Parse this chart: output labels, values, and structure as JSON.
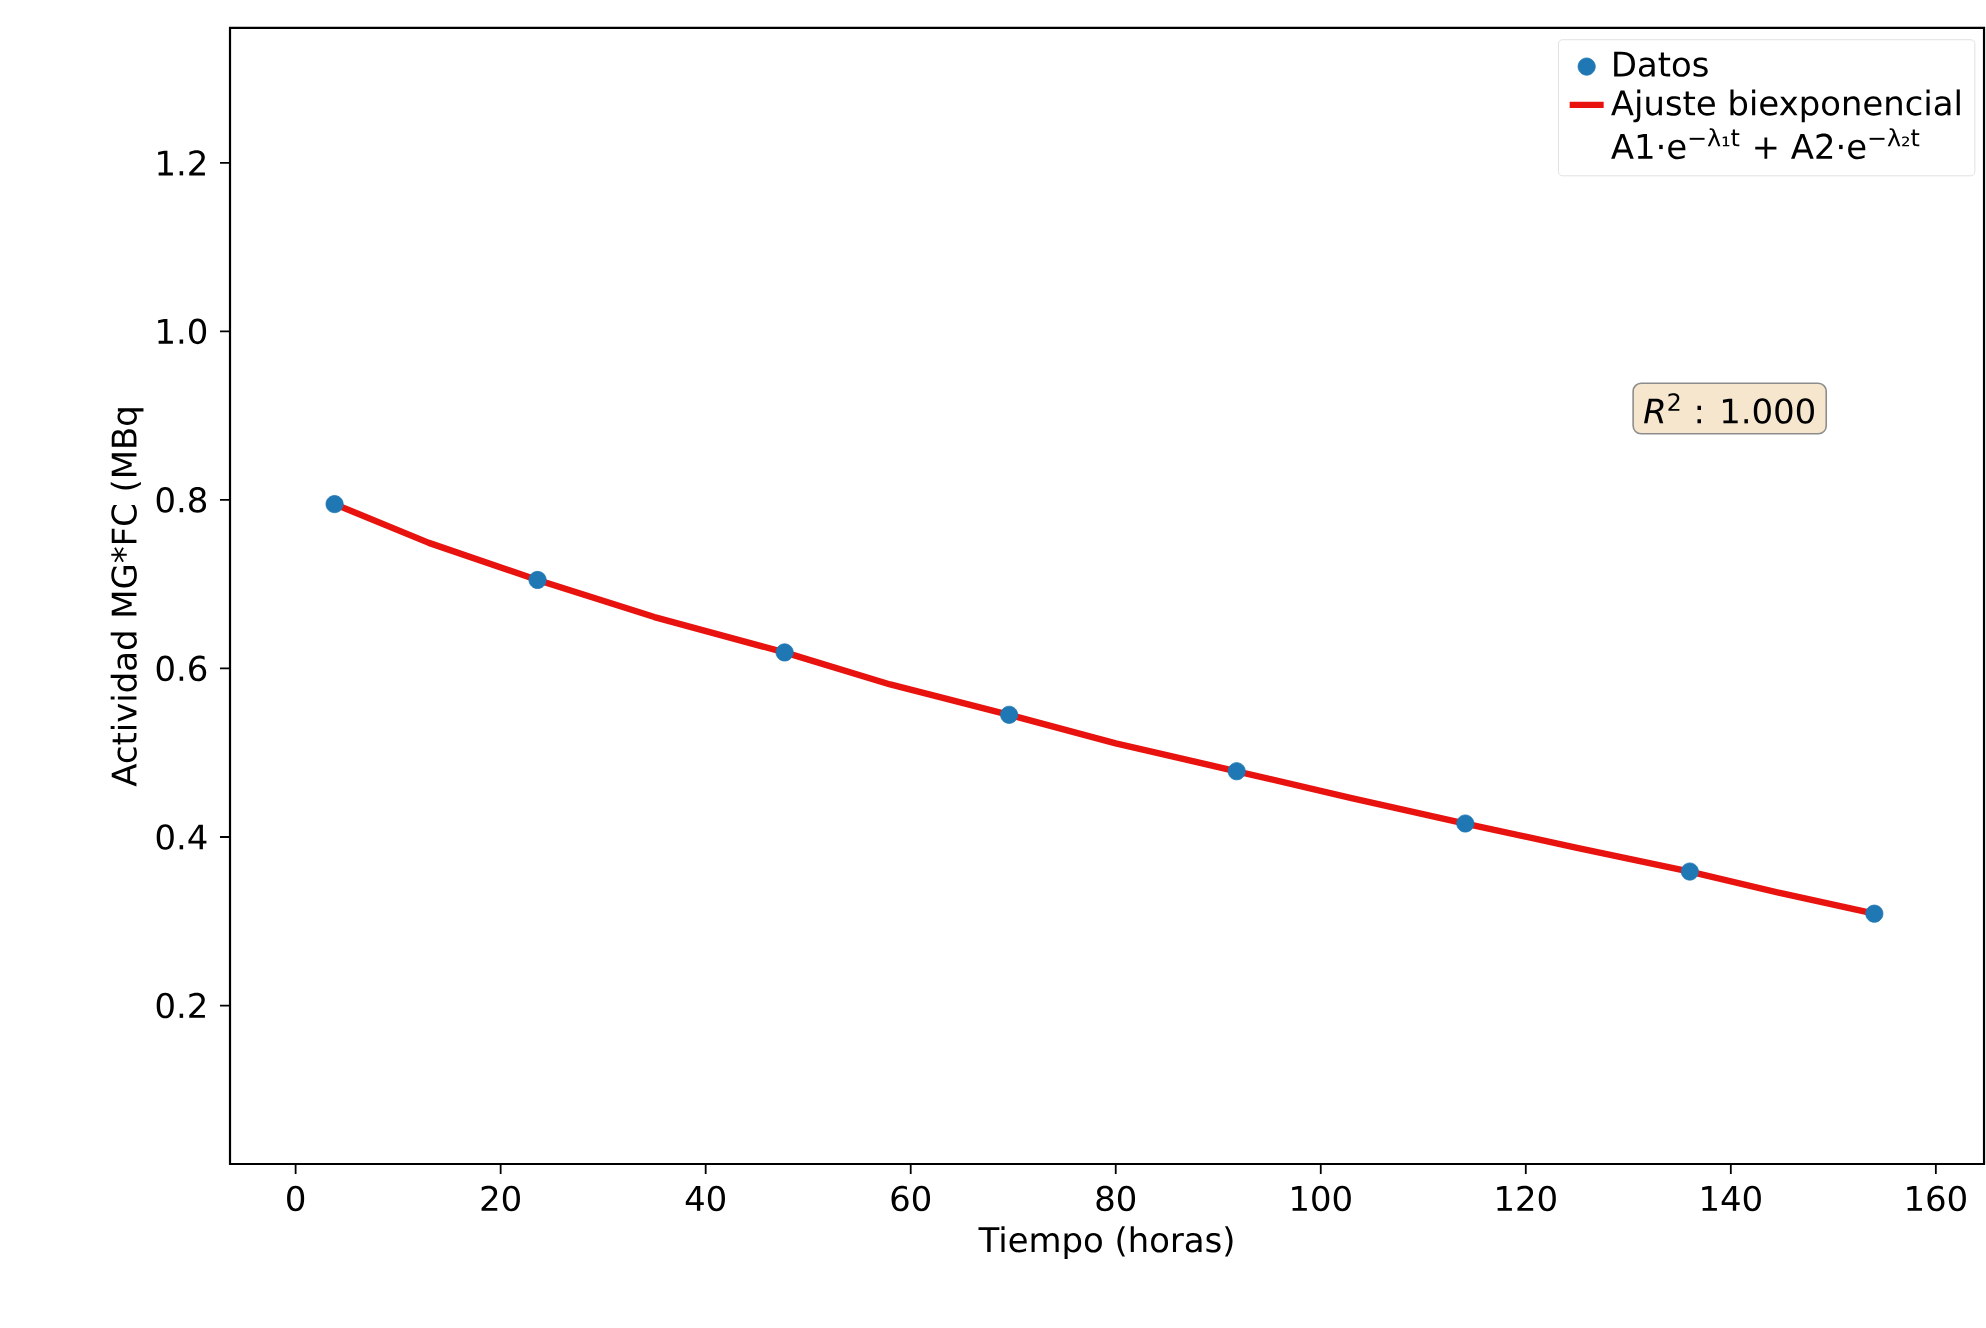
{
  "chart_data": {
    "type": "scatter",
    "xlabel": "Tiempo (horas)",
    "ylabel": "Actividad MG*FC (MBq",
    "x": [
      3.8,
      23.6,
      47.7,
      69.6,
      91.8,
      114.1,
      136,
      154
    ],
    "series": [
      {
        "name": "Datos",
        "color": "#1f77b4",
        "marker": "circle",
        "values": [
          0.795,
          0.705,
          0.619,
          0.545,
          0.478,
          0.416,
          0.359,
          0.309
        ]
      },
      {
        "name": "Ajuste biexponencial",
        "type": "line",
        "color": "#e8130f",
        "marker": "none",
        "line_style": "solid",
        "x": [
          3.8,
          13,
          23.6,
          35,
          47.7,
          58,
          69.6,
          80,
          91.8,
          103,
          114.1,
          125,
          136,
          145,
          154
        ],
        "values": [
          0.795,
          0.749,
          0.705,
          0.661,
          0.619,
          0.581,
          0.545,
          0.511,
          0.478,
          0.446,
          0.416,
          0.387,
          0.359,
          0.333,
          0.309
        ]
      }
    ],
    "annotations": [
      "A1·e$^{−λ₁t}$ + A2·e$^{−λ₂t}$",
      "*R*$^{2}$ : 1.000"
    ],
    "xlim": [
      -6.4,
      164.7
    ],
    "ylim": [
      0.012,
      1.36
    ],
    "xticks": [
      0,
      20,
      40,
      60,
      80,
      100,
      120,
      140,
      160
    ],
    "yticks": [
      0.2,
      0.4,
      0.6,
      0.8,
      {
        "value": 1.0,
        "label": "1.0"
      },
      1.2
    ],
    "grid": false,
    "legend": "top right"
  }
}
